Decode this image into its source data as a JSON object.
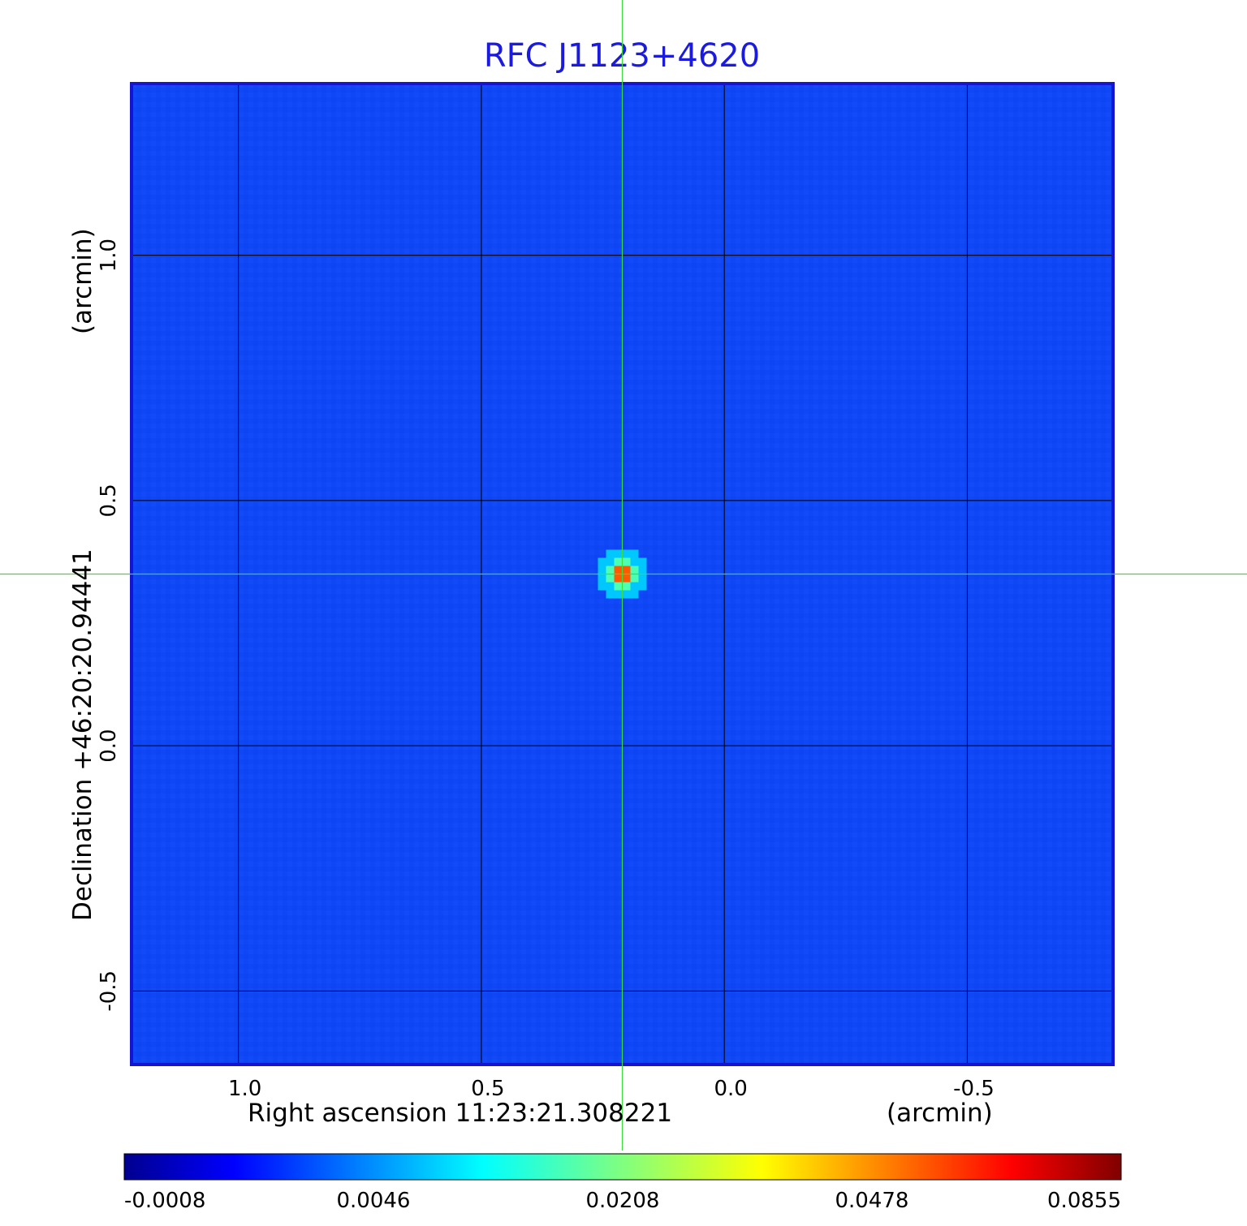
{
  "chart_data": {
    "type": "heatmap",
    "title": "RFC J1123+4620",
    "xlabel": "Right ascension  11:23:21.308221",
    "xunit": "(arcmin)",
    "ylabel": "Declination  +46:20:20.94441",
    "yunit": "(arcmin)",
    "xlim": [
      1.22,
      -0.8
    ],
    "ylim": [
      -0.65,
      1.35
    ],
    "x_ticks": [
      1.0,
      0.5,
      0.0,
      -0.5
    ],
    "x_tick_labels": [
      "1.0",
      "0.5",
      "0.0",
      "-0.5"
    ],
    "y_ticks": [
      -0.5,
      0.0,
      0.5,
      1.0
    ],
    "y_tick_labels": [
      "-0.5",
      "0.0",
      "0.5",
      "1.0"
    ],
    "grid": true,
    "crosshair": {
      "x": 0.21,
      "y": 0.35
    },
    "source": {
      "x": 0.21,
      "y": 0.35,
      "peak": 0.0855
    },
    "colorbar": {
      "min": -0.0008,
      "max": 0.0855,
      "tick_labels": [
        "-0.0008",
        "0.0046",
        "0.0208",
        "0.0478",
        "0.0855"
      ],
      "colormap": "jet"
    },
    "colors": {
      "title": "#1a1ae0",
      "frame": "#1414d2",
      "background_field": "#0f46f5",
      "crosshair": "#3cdc3c",
      "grid": "#000000"
    }
  }
}
